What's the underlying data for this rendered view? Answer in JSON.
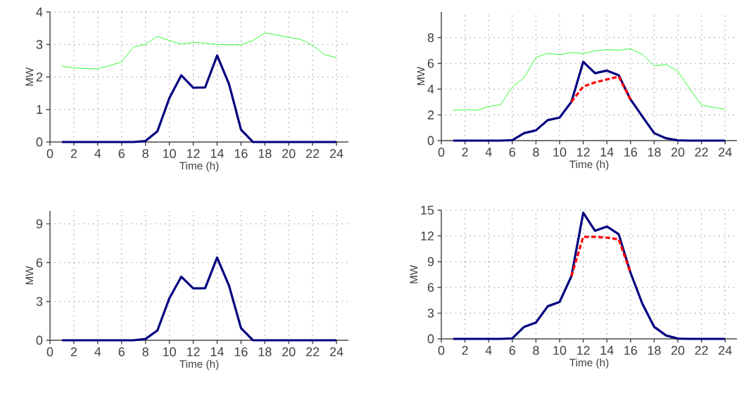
{
  "chart_data": [
    {
      "type": "line",
      "xlabel": "Time (h)",
      "ylabel": "MW",
      "x": [
        1,
        2,
        3,
        4,
        5,
        6,
        7,
        8,
        9,
        10,
        11,
        12,
        13,
        14,
        15,
        16,
        17,
        18,
        19,
        20,
        21,
        22,
        23,
        24
      ],
      "xlim": [
        0,
        25
      ],
      "xticks": [
        0,
        2,
        4,
        6,
        8,
        10,
        12,
        14,
        16,
        18,
        20,
        22,
        24
      ],
      "ylim": [
        0,
        4
      ],
      "yticks": [
        0,
        1,
        2,
        3,
        4
      ],
      "grid": true,
      "series": [
        {
          "color": "#00ff00",
          "line_style": "solid",
          "values": [
            2.33,
            2.28,
            2.26,
            2.25,
            2.35,
            2.46,
            2.92,
            3.0,
            3.25,
            3.12,
            3.01,
            3.06,
            3.04,
            3.0,
            2.99,
            2.99,
            3.12,
            3.35,
            3.29,
            3.22,
            3.16,
            2.97,
            2.69,
            2.59
          ]
        },
        {
          "color": "#000080",
          "line_style": "solid",
          "values": [
            0,
            0,
            0,
            0,
            0,
            0,
            0,
            0.03,
            0.33,
            1.35,
            2.05,
            1.67,
            1.68,
            2.66,
            1.78,
            0.38,
            0,
            0,
            0,
            0,
            0,
            0,
            0,
            0
          ]
        }
      ]
    },
    {
      "type": "line",
      "xlabel": "Time (h)",
      "ylabel": "MW",
      "x": [
        1,
        2,
        3,
        4,
        5,
        6,
        7,
        8,
        9,
        10,
        11,
        12,
        13,
        14,
        15,
        16,
        17,
        18,
        19,
        20,
        21,
        22,
        23,
        24
      ],
      "xlim": [
        0,
        25
      ],
      "xticks": [
        0,
        2,
        4,
        6,
        8,
        10,
        12,
        14,
        16,
        18,
        20,
        22,
        24
      ],
      "ylim": [
        0,
        10
      ],
      "yticks": [
        0,
        2,
        4,
        6,
        8
      ],
      "grid": true,
      "series": [
        {
          "color": "#00ff00",
          "line_style": "solid",
          "values": [
            2.36,
            2.41,
            2.37,
            2.65,
            2.79,
            4.16,
            4.9,
            6.47,
            6.78,
            6.68,
            6.85,
            6.76,
            6.98,
            7.07,
            7.03,
            7.14,
            6.7,
            5.81,
            5.92,
            5.39,
            4.02,
            2.76,
            2.59,
            2.43
          ]
        },
        {
          "color": "#000080",
          "line_style": "solid",
          "values": [
            0,
            0,
            0,
            0,
            0,
            0.03,
            0.58,
            0.8,
            1.59,
            1.79,
            3.01,
            6.12,
            5.24,
            5.44,
            5.08,
            3.2,
            1.88,
            0.58,
            0.18,
            0.02,
            0,
            0,
            0,
            0
          ]
        },
        {
          "color": "#ff0000",
          "line_style": "dashed",
          "values": [
            null,
            null,
            null,
            null,
            null,
            null,
            null,
            null,
            null,
            null,
            3.01,
            4.2,
            4.53,
            4.75,
            4.97,
            3.2,
            null,
            null,
            null,
            null,
            null,
            null,
            null,
            null
          ]
        }
      ]
    },
    {
      "type": "line",
      "xlabel": "Time (h)",
      "ylabel": "MW",
      "x": [
        1,
        2,
        3,
        4,
        5,
        6,
        7,
        8,
        9,
        10,
        11,
        12,
        13,
        14,
        15,
        16,
        17,
        18,
        19,
        20,
        21,
        22,
        23,
        24
      ],
      "xlim": [
        0,
        25
      ],
      "xticks": [
        0,
        2,
        4,
        6,
        8,
        10,
        12,
        14,
        16,
        18,
        20,
        22,
        24
      ],
      "ylim": [
        0,
        10
      ],
      "yticks": [
        0,
        3,
        6,
        9
      ],
      "grid": true,
      "series": [
        {
          "color": "#000080",
          "line_style": "solid",
          "values": [
            0,
            0,
            0,
            0,
            0,
            0,
            0,
            0.1,
            0.76,
            3.25,
            4.91,
            4.01,
            4.03,
            6.39,
            4.22,
            0.94,
            0,
            0,
            0,
            0,
            0,
            0,
            0,
            0
          ]
        }
      ]
    },
    {
      "type": "line",
      "xlabel": "Time (h)",
      "ylabel": "MW",
      "x": [
        1,
        2,
        3,
        4,
        5,
        6,
        7,
        8,
        9,
        10,
        11,
        12,
        13,
        14,
        15,
        16,
        17,
        18,
        19,
        20,
        21,
        22,
        23,
        24
      ],
      "xlim": [
        0,
        25
      ],
      "xticks": [
        0,
        2,
        4,
        6,
        8,
        10,
        12,
        14,
        16,
        18,
        20,
        22,
        24
      ],
      "ylim": [
        0,
        15
      ],
      "yticks": [
        0,
        3,
        6,
        9,
        12,
        15
      ],
      "grid": true,
      "series": [
        {
          "color": "#000080",
          "line_style": "solid",
          "values": [
            0,
            0,
            0,
            0,
            0,
            0.05,
            1.4,
            1.9,
            3.8,
            4.3,
            7.3,
            14.7,
            12.6,
            13.1,
            12.2,
            7.7,
            4.1,
            1.4,
            0.4,
            0.03,
            0,
            0,
            0,
            0
          ]
        },
        {
          "color": "#ff0000",
          "line_style": "dashed",
          "values": [
            null,
            null,
            null,
            null,
            null,
            null,
            null,
            null,
            null,
            null,
            7.3,
            11.9,
            11.9,
            11.8,
            11.6,
            7.7,
            null,
            null,
            null,
            null,
            null,
            null,
            null,
            null
          ]
        }
      ]
    }
  ]
}
